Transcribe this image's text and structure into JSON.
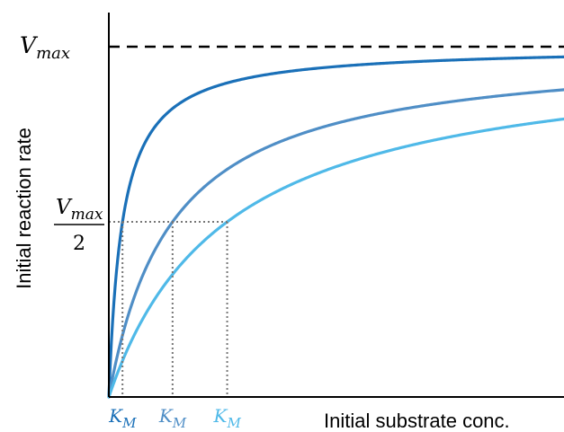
{
  "chart_data": {
    "type": "line",
    "xlabel": "Initial substrate conc.",
    "ylabel": "Initial reaction rate",
    "y_max_label": {
      "base": "V",
      "sub": "max"
    },
    "y_half_label": {
      "numerator_base": "V",
      "numerator_sub": "max",
      "denominator": "2"
    },
    "km_label": {
      "base": "K",
      "sub": "M"
    },
    "vmax": 1,
    "x_range": [
      0,
      10
    ],
    "y_range": [
      0,
      1.05
    ],
    "grid": false,
    "legend": "none",
    "series": [
      {
        "km": 0.3,
        "color": "#1a70b8"
      },
      {
        "km": 1.4,
        "color": "#4f8ec6"
      },
      {
        "km": 2.6,
        "color": "#4fb9e8"
      }
    ]
  }
}
